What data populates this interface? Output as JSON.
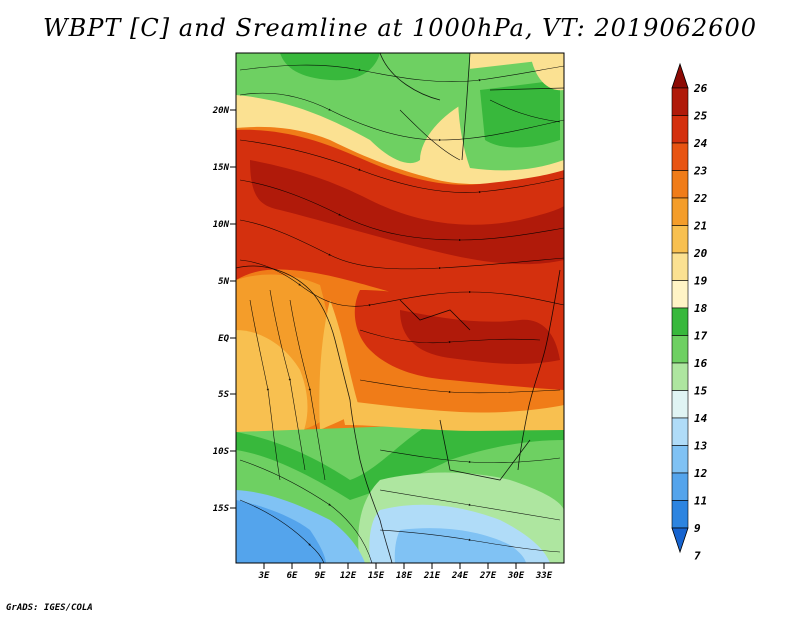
{
  "title": "WBPT [C] and Sreamline at 1000hPa, VT: 2019062600",
  "credit": "GrADS: IGES/COLA",
  "map": {
    "lat_labels": [
      "20N",
      "15N",
      "10N",
      "5N",
      "EQ",
      "5S",
      "10S",
      "15S"
    ],
    "lon_labels": [
      "3E",
      "6E",
      "9E",
      "12E",
      "15E",
      "18E",
      "21E",
      "24E",
      "27E",
      "30E",
      "33E"
    ]
  },
  "colorbar": {
    "levels": [
      "26",
      "25",
      "24",
      "23",
      "22",
      "21",
      "20",
      "19",
      "18",
      "17",
      "16",
      "15",
      "14",
      "13",
      "12",
      "11",
      "9",
      "7"
    ],
    "colors": [
      "#8c0a04",
      "#b01a0a",
      "#d4300e",
      "#e85412",
      "#f07c18",
      "#f49d2a",
      "#f8c050",
      "#fbe192",
      "#fff4c6",
      "#38b83c",
      "#6ed062",
      "#aee6a0",
      "#e0f4f4",
      "#b0dcf8",
      "#80c2f4",
      "#54a4ec",
      "#2c84e0",
      "#1664d0"
    ]
  }
}
